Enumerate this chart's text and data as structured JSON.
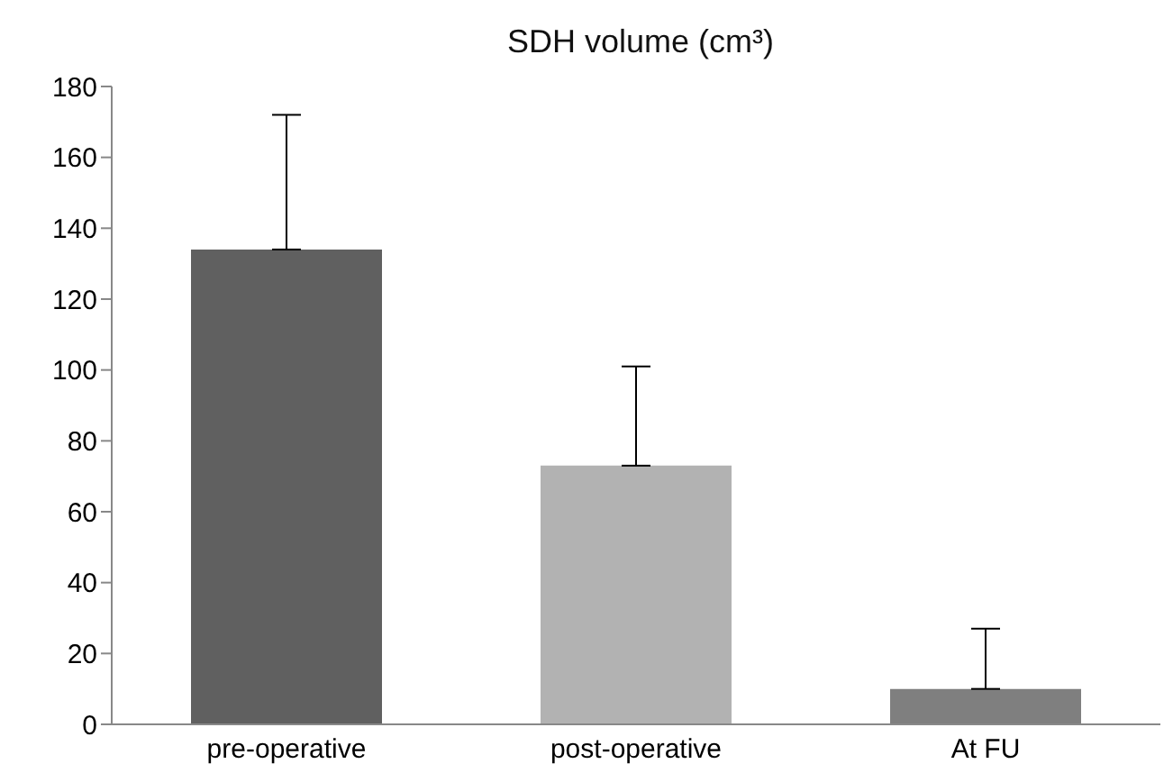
{
  "chart_data": {
    "type": "bar",
    "title": "SDH volume (cm³)",
    "categories": [
      "pre-operative",
      "post-operative",
      "At FU"
    ],
    "values": [
      134,
      73,
      10
    ],
    "colors": [
      "#606060",
      "#b2b2b2",
      "#7f7f7f"
    ],
    "errors": [
      [
        134,
        172
      ],
      [
        73,
        101
      ],
      [
        10,
        27
      ]
    ],
    "ylim": [
      0,
      180
    ],
    "yticks": [
      0,
      20,
      40,
      60,
      80,
      100,
      120,
      140,
      160,
      180
    ],
    "grid": false,
    "legend": false
  }
}
